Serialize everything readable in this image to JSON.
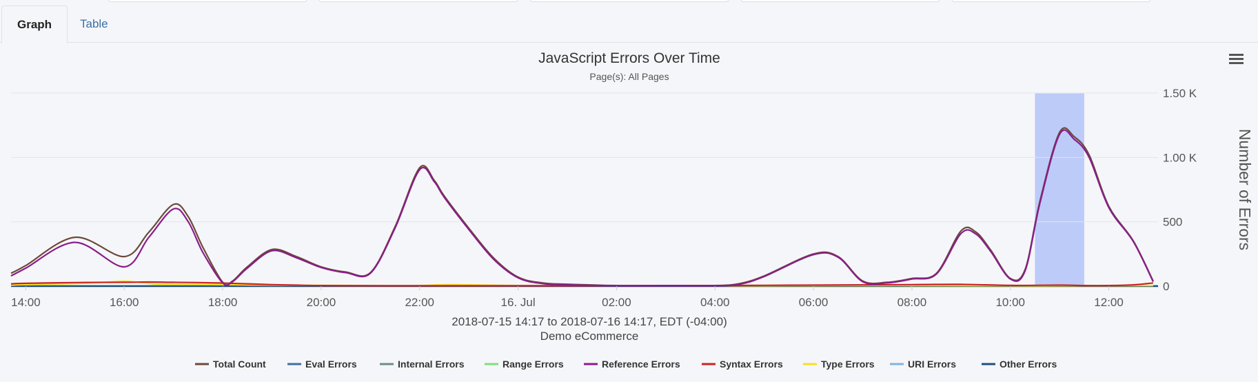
{
  "tabs": [
    {
      "label": "Graph",
      "active": true
    },
    {
      "label": "Table",
      "active": false
    }
  ],
  "chart_data": {
    "type": "line",
    "title": "JavaScript Errors Over Time",
    "subtitle": "Page(s): All Pages",
    "ylabel": "Number of Errors",
    "ylim": [
      0,
      1500
    ],
    "y_ticks": [
      {
        "value": 0,
        "label": "0"
      },
      {
        "value": 500,
        "label": "500"
      },
      {
        "value": 1000,
        "label": "1.00 K"
      },
      {
        "value": 1500,
        "label": "1.50 K"
      }
    ],
    "xlim": [
      13.7,
      37.0
    ],
    "x_ticks": [
      {
        "value": 14,
        "label": "14:00"
      },
      {
        "value": 16,
        "label": "16:00"
      },
      {
        "value": 18,
        "label": "18:00"
      },
      {
        "value": 20,
        "label": "20:00"
      },
      {
        "value": 22,
        "label": "22:00"
      },
      {
        "value": 24,
        "label": "16. Jul"
      },
      {
        "value": 26,
        "label": "02:00"
      },
      {
        "value": 28,
        "label": "04:00"
      },
      {
        "value": 30,
        "label": "06:00"
      },
      {
        "value": 32,
        "label": "08:00"
      },
      {
        "value": 34,
        "label": "10:00"
      },
      {
        "value": 36,
        "label": "12:00"
      }
    ],
    "highlight_band": [
      34.5,
      35.5
    ],
    "grid": true,
    "legend_position": "bottom",
    "caption": [
      "2018-07-15 14:17 to 2018-07-16 14:17, EDT (-04:00)",
      "Demo eCommerce"
    ],
    "series": [
      {
        "name": "Total Count",
        "color": "#6b4a3a",
        "x": [
          13.7,
          14,
          15,
          16,
          16.5,
          17,
          17.3,
          17.6,
          18,
          18.2,
          18.5,
          19,
          19.5,
          20,
          20.5,
          21,
          21.5,
          22,
          22.3,
          22.5,
          23,
          23.5,
          24,
          24.5,
          25,
          26,
          27,
          28,
          28.5,
          29,
          30,
          30.5,
          31,
          31.5,
          32,
          32.5,
          33,
          33.3,
          33.6,
          34,
          34.3,
          34.6,
          35,
          35.3,
          35.6,
          36,
          36.5,
          36.9
        ],
        "y": [
          100,
          160,
          380,
          230,
          420,
          635,
          540,
          300,
          30,
          40,
          150,
          285,
          230,
          150,
          110,
          105,
          460,
          920,
          820,
          700,
          450,
          220,
          70,
          25,
          15,
          5,
          5,
          5,
          20,
          80,
          250,
          230,
          40,
          30,
          60,
          100,
          430,
          420,
          280,
          60,
          130,
          660,
          1195,
          1160,
          1020,
          620,
          350,
          40
        ]
      },
      {
        "name": "Eval Errors",
        "color": "#3f6f9e",
        "x": [
          13.7,
          37
        ],
        "y": [
          0,
          0
        ]
      },
      {
        "name": "Internal Errors",
        "color": "#6b8f86",
        "x": [
          13.7,
          37
        ],
        "y": [
          2,
          2
        ]
      },
      {
        "name": "Range Errors",
        "color": "#7de07a",
        "x": [
          13.7,
          37
        ],
        "y": [
          3,
          3
        ]
      },
      {
        "name": "Reference Errors",
        "color": "#8a1c8a",
        "x": [
          13.7,
          14,
          15,
          16,
          16.5,
          17,
          17.3,
          17.6,
          18,
          18.2,
          18.5,
          19,
          19.5,
          20,
          20.5,
          21,
          21.5,
          22,
          22.3,
          22.5,
          23,
          23.5,
          24,
          24.5,
          25,
          26,
          27,
          28,
          28.5,
          29,
          30,
          30.5,
          31,
          31.5,
          32,
          32.5,
          33,
          33.3,
          33.6,
          34,
          34.3,
          34.6,
          35,
          35.3,
          35.6,
          36,
          36.5,
          36.9
        ],
        "y": [
          80,
          140,
          340,
          150,
          380,
          600,
          500,
          260,
          25,
          35,
          140,
          275,
          220,
          145,
          105,
          100,
          450,
          905,
          810,
          690,
          440,
          210,
          65,
          20,
          10,
          3,
          3,
          3,
          15,
          75,
          245,
          225,
          35,
          25,
          55,
          95,
          410,
          405,
          270,
          55,
          120,
          645,
          1180,
          1140,
          1000,
          610,
          345,
          35
        ]
      },
      {
        "name": "Syntax Errors",
        "color": "#cc2222",
        "x": [
          13.7,
          14,
          15,
          16,
          16.5,
          17,
          17.5,
          18,
          18.5,
          19,
          19.5,
          20,
          22,
          24,
          26,
          28,
          30,
          32,
          33,
          34,
          35,
          35.5,
          36,
          36.5,
          36.9
        ],
        "y": [
          18,
          22,
          28,
          30,
          32,
          30,
          28,
          24,
          18,
          12,
          8,
          5,
          3,
          3,
          3,
          5,
          8,
          12,
          14,
          6,
          8,
          5,
          5,
          10,
          25
        ]
      },
      {
        "name": "Type Errors",
        "color": "#f5e020",
        "x": [
          13.7,
          14,
          15,
          15.5,
          16,
          16.3,
          16.6,
          17,
          17.5,
          18,
          18.5,
          19,
          19.5,
          20,
          21,
          22,
          22.5,
          23,
          24,
          26,
          28,
          30,
          32,
          34,
          36,
          36.9
        ],
        "y": [
          8,
          12,
          20,
          28,
          38,
          30,
          18,
          15,
          14,
          12,
          10,
          8,
          7,
          6,
          5,
          5,
          12,
          10,
          5,
          3,
          3,
          4,
          5,
          3,
          3,
          5
        ]
      },
      {
        "name": "URI Errors",
        "color": "#7fb3e0",
        "x": [
          13.7,
          37
        ],
        "y": [
          1,
          1
        ]
      },
      {
        "name": "Other Errors",
        "color": "#1f4f7a",
        "x": [
          13.7,
          37
        ],
        "y": [
          0,
          0
        ]
      }
    ]
  }
}
